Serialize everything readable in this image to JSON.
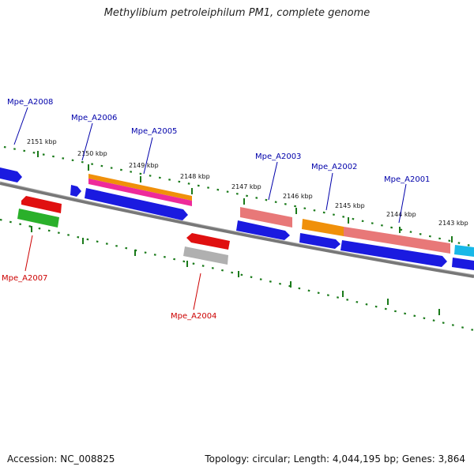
{
  "title": "Methylibium petroleiphilum PM1, complete genome",
  "footer": {
    "accession": "Accession: NC_008825",
    "topology": "Topology: circular; Length: 4,044,195 bp; Genes: 3,864"
  },
  "colors": {
    "forward_label": "#0000aa",
    "reverse_label": "#cc0000",
    "tick": "#1a7a1a",
    "backbone": "#777777"
  },
  "ticks": [
    {
      "label": "2151 kbp"
    },
    {
      "label": "2150 kbp"
    },
    {
      "label": "2149 kbp"
    },
    {
      "label": "2148 kbp"
    },
    {
      "label": "2147 kbp"
    },
    {
      "label": "2146 kbp"
    },
    {
      "label": "2145 kbp"
    },
    {
      "label": "2144 kbp"
    },
    {
      "label": "2143 kbp"
    }
  ],
  "gene_labels": [
    {
      "name": "Mpe_A2008",
      "strand": "forward"
    },
    {
      "name": "Mpe_A2006",
      "strand": "forward"
    },
    {
      "name": "Mpe_A2005",
      "strand": "forward"
    },
    {
      "name": "Mpe_A2003",
      "strand": "forward"
    },
    {
      "name": "Mpe_A2002",
      "strand": "forward"
    },
    {
      "name": "Mpe_A2001",
      "strand": "forward"
    },
    {
      "name": "Mpe_A2007",
      "strand": "reverse"
    },
    {
      "name": "Mpe_A2004",
      "strand": "reverse"
    }
  ],
  "feature_colors": {
    "blue": "#1a1ae0",
    "orange": "#f0900a",
    "pink": "#ee2a9a",
    "salmon": "#e87878",
    "red": "#e01010",
    "green": "#2ab02a",
    "gray": "#b0b0b0",
    "cyan": "#18b8e8"
  }
}
